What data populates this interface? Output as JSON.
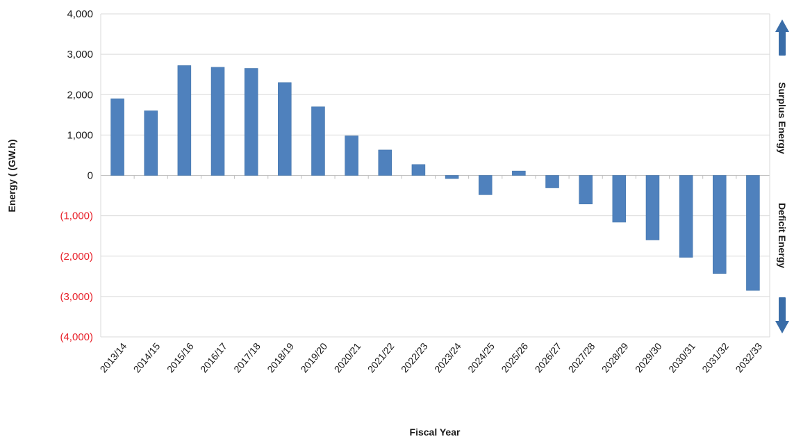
{
  "colors": {
    "bar": "#4f81bd",
    "bar_edge": "#3b6ea5",
    "positive_tick": "#1a1a1a",
    "negative_tick": "#e8212a",
    "grid": "#d9d9d9",
    "arrow": "#3a6da8"
  },
  "chart_data": {
    "type": "bar",
    "categories": [
      "2013/14",
      "2014/15",
      "2015/16",
      "2016/17",
      "2017/18",
      "2018/19",
      "2019/20",
      "2020/21",
      "2021/22",
      "2022/23",
      "2023/24",
      "2024/25",
      "2025/26",
      "2026/27",
      "2027/28",
      "2028/29",
      "2029/30",
      "2030/31",
      "2031/32",
      "2032/33"
    ],
    "values": [
      1900,
      1600,
      2720,
      2680,
      2650,
      2300,
      1700,
      980,
      630,
      270,
      -80,
      -480,
      110,
      -310,
      -710,
      -1160,
      -1600,
      -2030,
      -2430,
      -2850
    ],
    "xlabel": "Fiscal Year",
    "ylabel": "Energy ( (GW.h)",
    "ylim": [
      -4000,
      4000
    ],
    "yticks": [
      {
        "value": 4000,
        "label": "4,000"
      },
      {
        "value": 3000,
        "label": "3,000"
      },
      {
        "value": 2000,
        "label": "2,000"
      },
      {
        "value": 1000,
        "label": "1,000"
      },
      {
        "value": 0,
        "label": "0"
      },
      {
        "value": -1000,
        "label": "(1,000)"
      },
      {
        "value": -2000,
        "label": "(2,000)"
      },
      {
        "value": -3000,
        "label": "(3,000)"
      },
      {
        "value": -4000,
        "label": "(4,000)"
      }
    ],
    "grid": true,
    "annotations": {
      "surplus": "Surplus Energy",
      "deficit": "Deficit Energy"
    }
  }
}
